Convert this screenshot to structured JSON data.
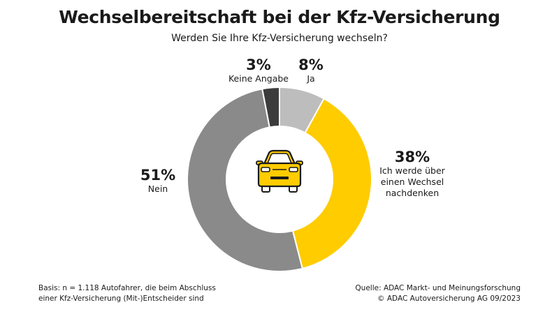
{
  "header": {
    "title": "Wechselbereitschaft bei der Kfz-Versicherung",
    "subtitle": "Werden Sie Ihre Kfz-Versicherung wechseln?"
  },
  "chart_data": {
    "type": "pie",
    "variant": "donut",
    "slices": [
      {
        "label": "Ja",
        "value": 8,
        "display": "8%",
        "color": "#bdbdbd"
      },
      {
        "label": "Ich werde über einen Wechsel nachdenken",
        "value": 38,
        "display": "38%",
        "color": "#ffcc00"
      },
      {
        "label": "Nein",
        "value": 51,
        "display": "51%",
        "color": "#8a8a8a"
      },
      {
        "label": "Keine Angabe",
        "value": 3,
        "display": "3%",
        "color": "#3c3c3c"
      }
    ],
    "center_icon": "car-icon"
  },
  "labels": {
    "ja": {
      "pct": "8%",
      "lines": [
        "Ja"
      ]
    },
    "nachdenken": {
      "pct": "38%",
      "lines": [
        "Ich werde über",
        "einen Wechsel",
        "nachdenken"
      ]
    },
    "nein": {
      "pct": "51%",
      "lines": [
        "Nein"
      ]
    },
    "keine": {
      "pct": "3%",
      "lines": [
        "Keine Angabe"
      ]
    }
  },
  "footer": {
    "basis_line1": "Basis: n = 1.118 Autofahrer, die beim Abschluss",
    "basis_line2": "einer Kfz-Versicherung (Mit-)Entscheider sind",
    "source_line1": "Quelle: ADAC Markt- und Meinungsforschung",
    "source_line2": "© ADAC Autoversicherung AG 09/2023"
  }
}
